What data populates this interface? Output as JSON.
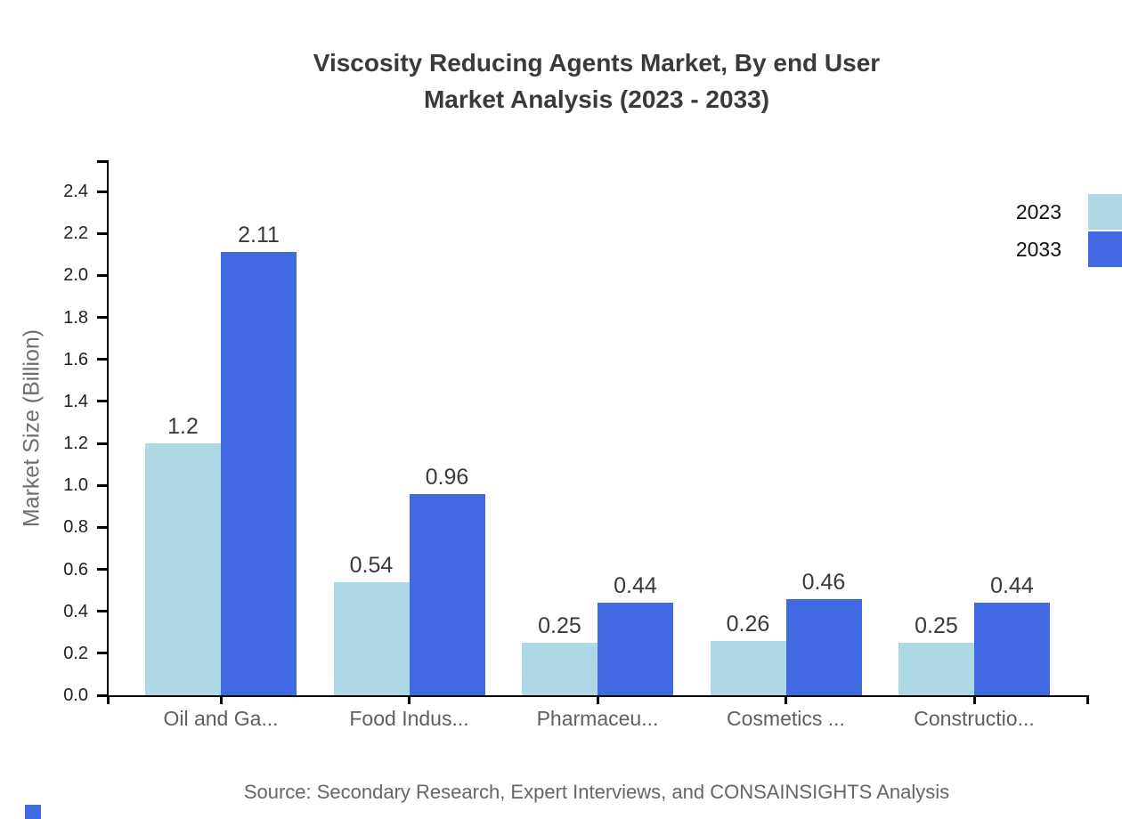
{
  "chart": {
    "title_line1": "Viscosity Reducing Agents Market, By end User",
    "title_line2": "Market Analysis (2023 - 2033)",
    "source": "Source: Secondary Research, Expert Interviews, and CONSAINSIGHTS Analysis"
  },
  "chart_data": {
    "type": "bar",
    "title": "Viscosity Reducing Agents Market, By end User Market Analysis (2023 - 2033)",
    "categories": [
      "Oil and Ga...",
      "Food Indus...",
      "Pharmaceu...",
      "Cosmetics ...",
      "Constructio..."
    ],
    "series": [
      {
        "name": "2023",
        "color": "#ADD8E6",
        "values": [
          1.2,
          0.54,
          0.25,
          0.26,
          0.25
        ],
        "value_labels": [
          "1.2",
          "0.54",
          "0.25",
          "0.26",
          "0.25"
        ]
      },
      {
        "name": "2033",
        "color": "#4169E1",
        "values": [
          2.11,
          0.96,
          0.44,
          0.46,
          0.44
        ],
        "value_labels": [
          "2.11",
          "0.96",
          "0.44",
          "0.46",
          "0.44"
        ]
      }
    ],
    "xlabel": "",
    "ylabel": "Market Size (Billion)",
    "ylim": [
      0,
      2.5
    ],
    "yticks": [
      0,
      0.2,
      0.4,
      0.6,
      0.8,
      1.0,
      1.2,
      1.4,
      1.6,
      1.8,
      2.0,
      2.2,
      2.4
    ],
    "grid": false,
    "legend_position": "upper-right",
    "bar_value_labels": true
  },
  "colors": {
    "series_2023": "#ADD8E6",
    "series_2033": "#4169E1",
    "axis": "#000000",
    "title_text": "#3a3a3a",
    "tick_text": "#1f1f1f",
    "category_text": "#5f5f5f",
    "value_text": "#3a3a3a",
    "muted_text": "#666666",
    "brand_mark": "#4169E1"
  }
}
